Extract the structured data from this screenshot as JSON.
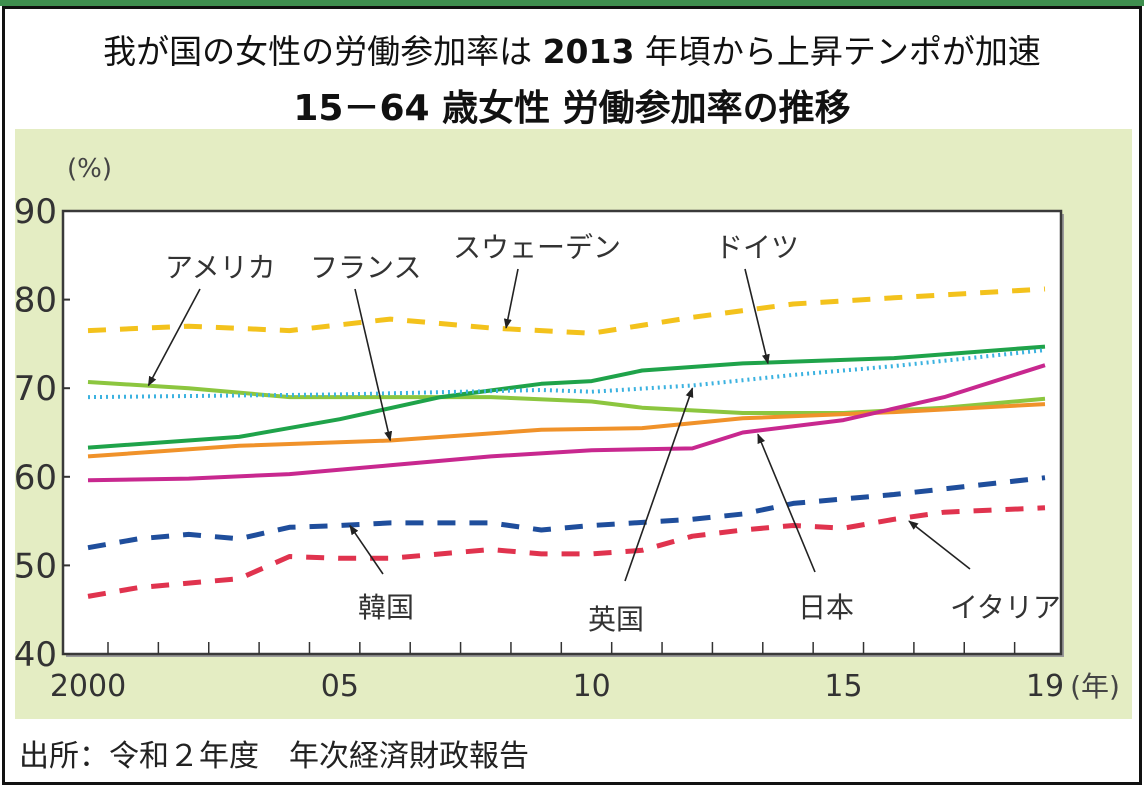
{
  "header": {
    "title_prefix": "我が国の女性の労働参加率は",
    "title_year": "2013",
    "title_suffix": "年頃から上昇テンポが加速",
    "subtitle": "15－64 歳女性 労働参加率の推移"
  },
  "footer": {
    "source": "出所：令和２年度　年次経済財政報告"
  },
  "colors": {
    "top_bar": "#3f8f4f",
    "panel_bg": "#e4edc3"
  },
  "chart_data": {
    "type": "line",
    "title": "15－64 歳女性 労働参加率の推移",
    "ylabel": "(%)",
    "xlabel": "(年)",
    "ylim": [
      40,
      90
    ],
    "xlim": [
      2000,
      2019
    ],
    "yticks": [
      40,
      50,
      60,
      70,
      80,
      90
    ],
    "ytick_labels": [
      "40",
      "50",
      "60",
      "70",
      "80",
      "90"
    ],
    "xticks": [
      2000,
      2005,
      2010,
      2015,
      2019
    ],
    "xtick_labels": [
      "2000",
      "05",
      "10",
      "15",
      "19"
    ],
    "grid": false,
    "series": [
      {
        "name": "スウェーデン",
        "color": "#f3c21c",
        "style": "dashed",
        "x": [
          2000,
          2002,
          2004,
          2006,
          2008,
          2010,
          2012,
          2014,
          2016,
          2019
        ],
        "values": [
          76.5,
          77.0,
          76.5,
          77.8,
          76.8,
          76.2,
          78.0,
          79.5,
          80.2,
          81.2
        ]
      },
      {
        "name": "アメリカ",
        "color": "#8cc63f",
        "style": "solid",
        "x": [
          2000,
          2002,
          2004,
          2006,
          2008,
          2010,
          2011,
          2013,
          2015,
          2017,
          2019
        ],
        "values": [
          70.7,
          70.0,
          69.0,
          69.0,
          69.0,
          68.5,
          67.8,
          67.2,
          67.2,
          67.8,
          68.8
        ]
      },
      {
        "name": "ドイツ",
        "color": "#1fa34a",
        "style": "solid",
        "x": [
          2000,
          2003,
          2005,
          2007,
          2009,
          2010,
          2011,
          2013,
          2016,
          2019
        ],
        "values": [
          63.3,
          64.5,
          66.5,
          69.0,
          70.5,
          70.8,
          72.0,
          72.8,
          73.4,
          74.7
        ]
      },
      {
        "name": "英国",
        "color": "#3bb2e0",
        "style": "dotted",
        "x": [
          2000,
          2005,
          2009,
          2010,
          2012,
          2014,
          2016,
          2019
        ],
        "values": [
          69.0,
          69.3,
          69.8,
          69.6,
          70.3,
          71.5,
          72.5,
          74.3
        ]
      },
      {
        "name": "フランス",
        "color": "#f0922a",
        "style": "solid",
        "x": [
          2000,
          2003,
          2006,
          2009,
          2011,
          2013,
          2016,
          2019
        ],
        "values": [
          62.3,
          63.5,
          64.1,
          65.3,
          65.5,
          66.6,
          67.3,
          68.2
        ]
      },
      {
        "name": "日本",
        "color": "#c8288f",
        "style": "solid",
        "x": [
          2000,
          2002,
          2004,
          2006,
          2008,
          2010,
          2012,
          2013,
          2015,
          2017,
          2019
        ],
        "values": [
          59.6,
          59.8,
          60.3,
          61.3,
          62.3,
          63.0,
          63.2,
          65.0,
          66.4,
          69.0,
          72.6
        ]
      },
      {
        "name": "韓国",
        "color": "#1f4e9c",
        "style": "dashed",
        "x": [
          2000,
          2001,
          2002,
          2003,
          2004,
          2005,
          2006,
          2008,
          2009,
          2010,
          2012,
          2013,
          2014,
          2016,
          2019
        ],
        "values": [
          52.0,
          53.0,
          53.5,
          53.0,
          54.3,
          54.5,
          54.8,
          54.8,
          54.0,
          54.5,
          55.2,
          55.8,
          57.0,
          58.0,
          59.9
        ]
      },
      {
        "name": "イタリア",
        "color": "#e0334e",
        "style": "dashed",
        "x": [
          2000,
          2001,
          2002,
          2003,
          2004,
          2005,
          2006,
          2008,
          2009,
          2010,
          2011,
          2012,
          2013,
          2014,
          2015,
          2016,
          2017,
          2019
        ],
        "values": [
          46.5,
          47.5,
          48.0,
          48.5,
          51.0,
          50.8,
          50.8,
          51.8,
          51.3,
          51.3,
          51.7,
          53.3,
          54.0,
          54.5,
          54.2,
          55.2,
          56.0,
          56.5
        ]
      }
    ],
    "annotations": [
      {
        "text": "アメリカ",
        "points_to": "アメリカ",
        "at_year": 2001.2,
        "at_value": 70.3
      },
      {
        "text": "フランス",
        "points_to": "フランス",
        "at_year": 2006.0,
        "at_value": 64.1
      },
      {
        "text": "スウェーデン",
        "points_to": "スウェーデン",
        "at_year": 2008.3,
        "at_value": 76.8
      },
      {
        "text": "ドイツ",
        "points_to": "ドイツ",
        "at_year": 2013.5,
        "at_value": 72.8
      },
      {
        "text": "韓国",
        "points_to": "韓国",
        "at_year": 2005.2,
        "at_value": 54.5
      },
      {
        "text": "英国",
        "points_to": "英国",
        "at_year": 2012.0,
        "at_value": 70.0
      },
      {
        "text": "日本",
        "points_to": "日本",
        "at_year": 2013.3,
        "at_value": 64.8
      },
      {
        "text": "イタリア",
        "points_to": "イタリア",
        "at_year": 2016.3,
        "at_value": 55.0
      }
    ]
  }
}
